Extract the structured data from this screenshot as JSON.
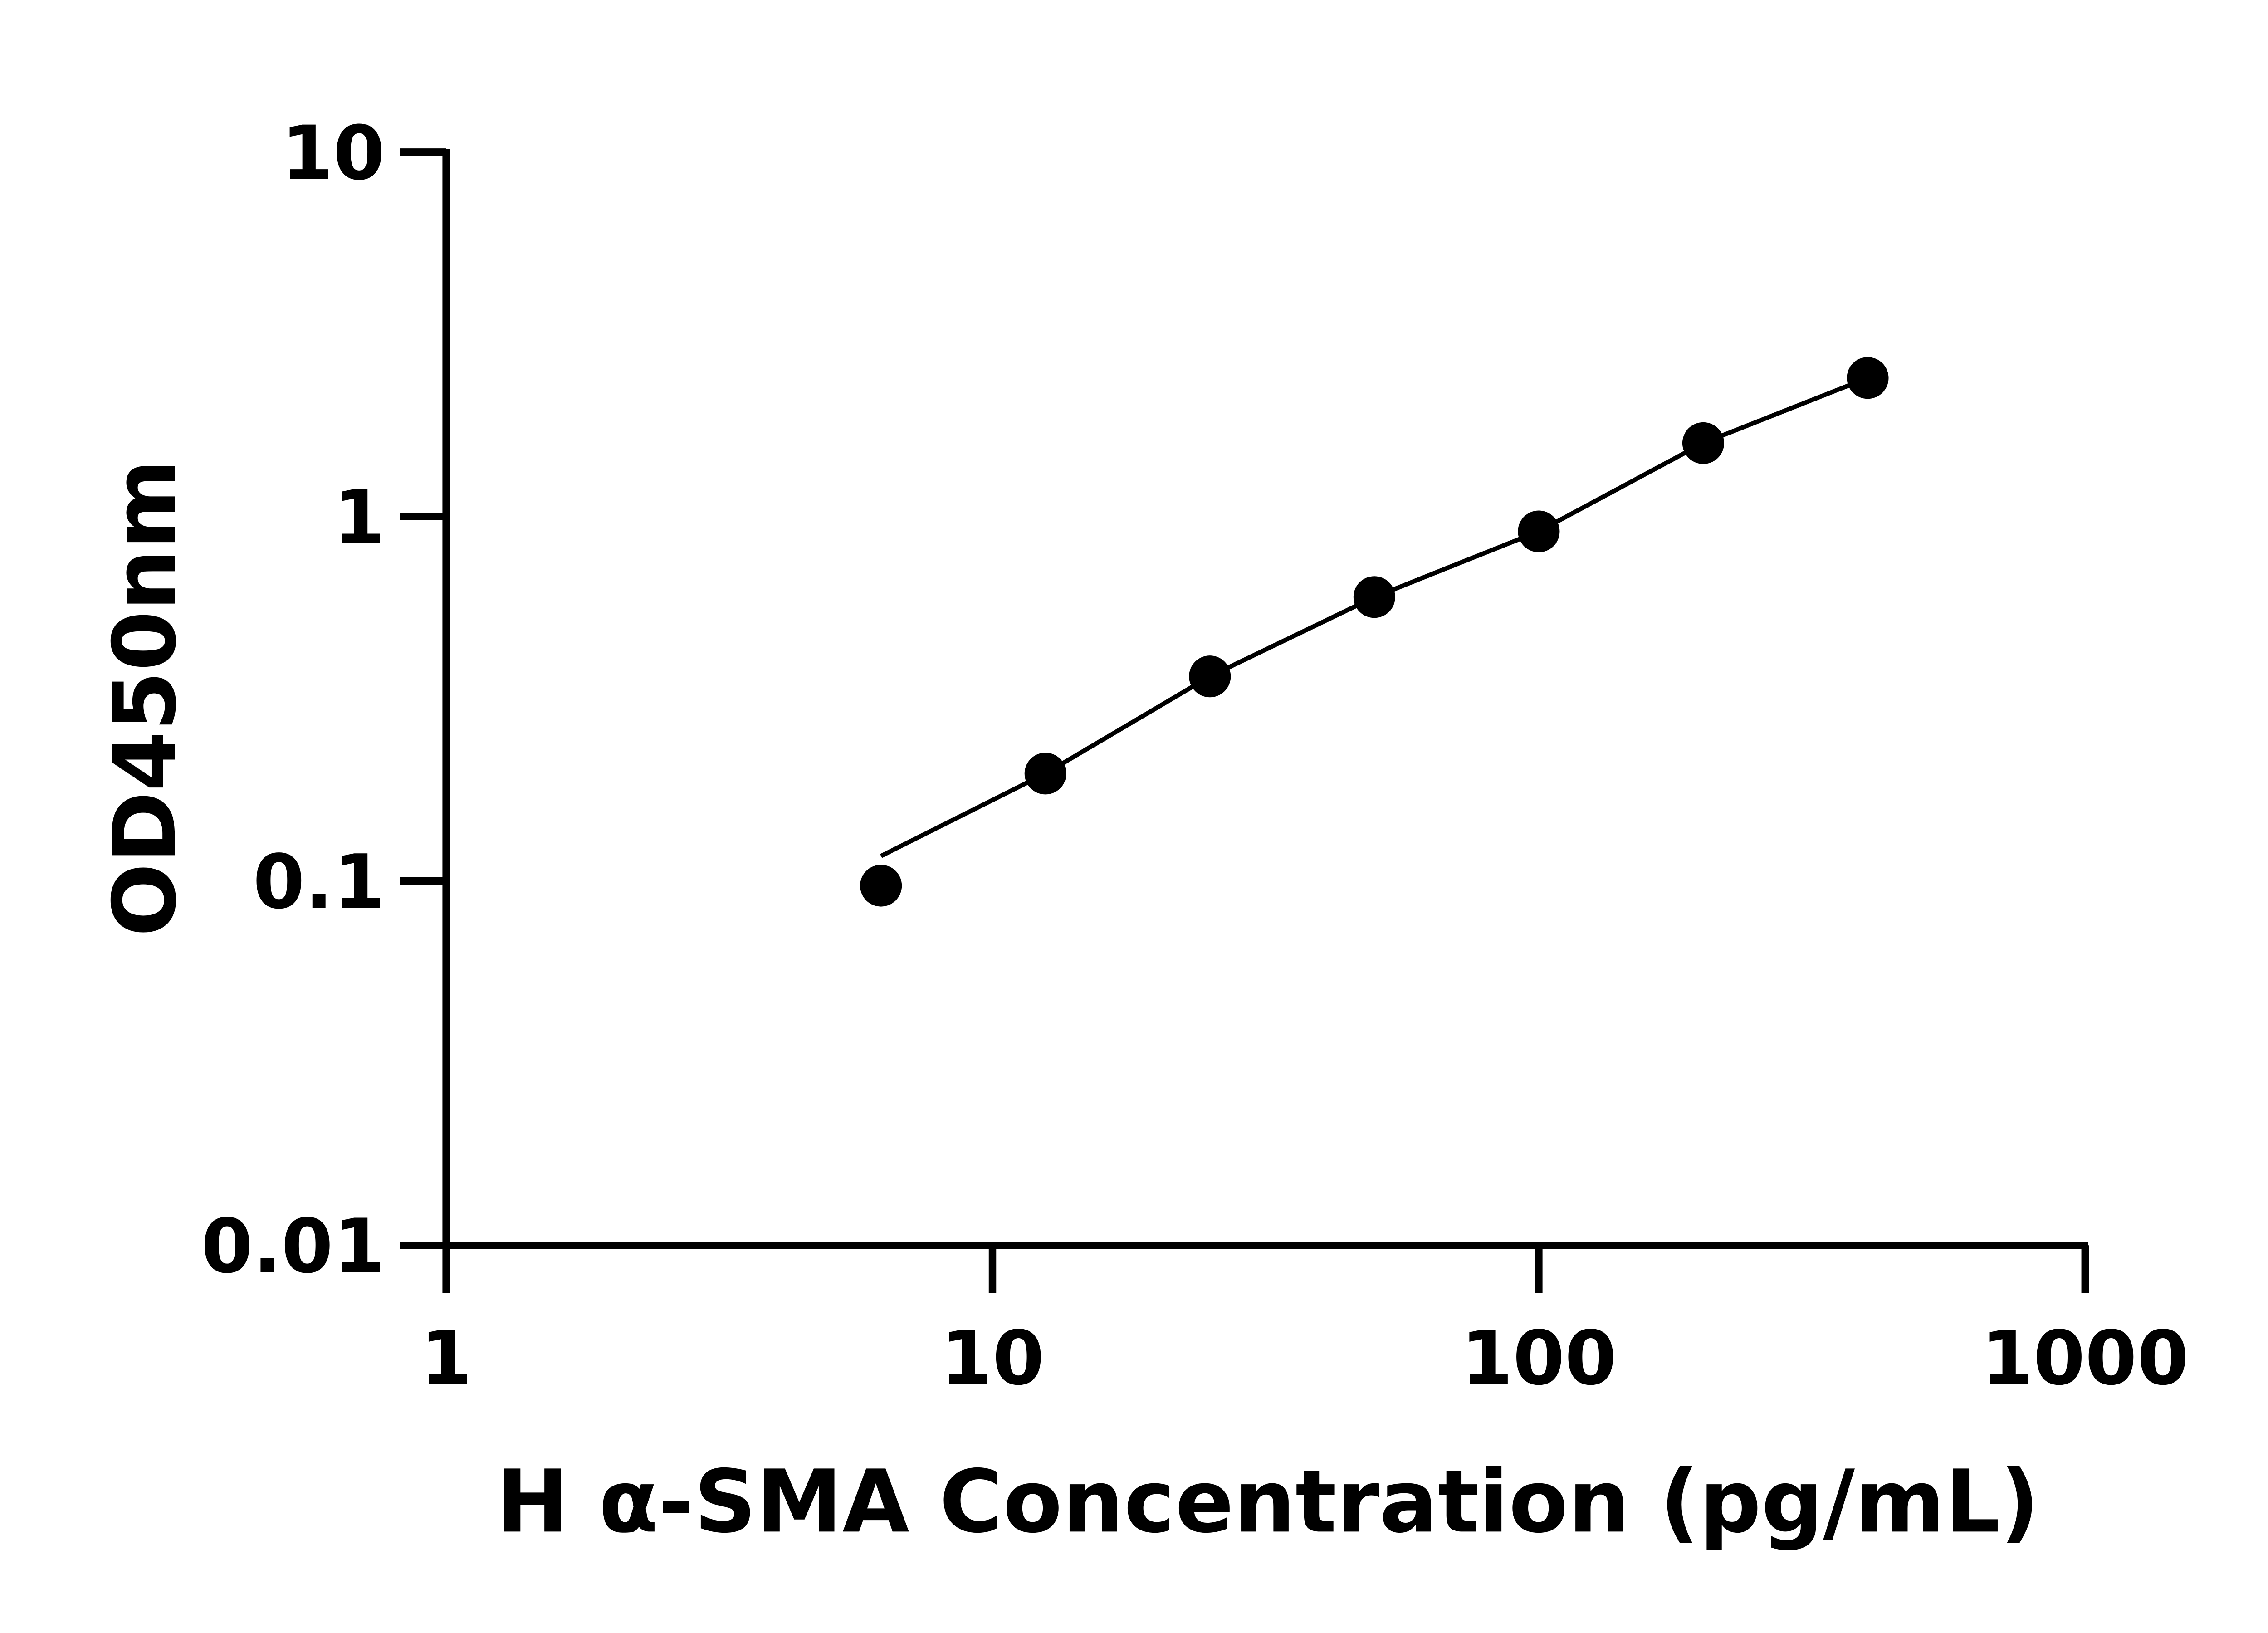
{
  "chart_data": {
    "type": "scatter",
    "title": "",
    "xlabel": "H α-SMA Concentration (pg/mL)",
    "ylabel": "OD450nm",
    "xscale": "log",
    "yscale": "log",
    "xlim": [
      1,
      1000
    ],
    "ylim": [
      0.01,
      10
    ],
    "xticks": [
      "1",
      "10",
      "100",
      "1000"
    ],
    "yticks": [
      "0.01",
      "0.1",
      "1",
      "10"
    ],
    "grid": false,
    "legend": "none",
    "series": [
      {
        "x": [
          6.25,
          12.5,
          25,
          50,
          100,
          200,
          400
        ],
        "y": [
          0.097,
          0.197,
          0.364,
          0.601,
          0.91,
          1.59,
          2.4
        ],
        "marker": "circle",
        "color": "#000000"
      }
    ],
    "fit_curve": {
      "x": [
        6.25,
        12.5,
        25,
        50,
        100,
        200,
        400
      ],
      "y": [
        0.117,
        0.197,
        0.364,
        0.601,
        0.91,
        1.59,
        2.4
      ],
      "color": "#000000"
    }
  }
}
